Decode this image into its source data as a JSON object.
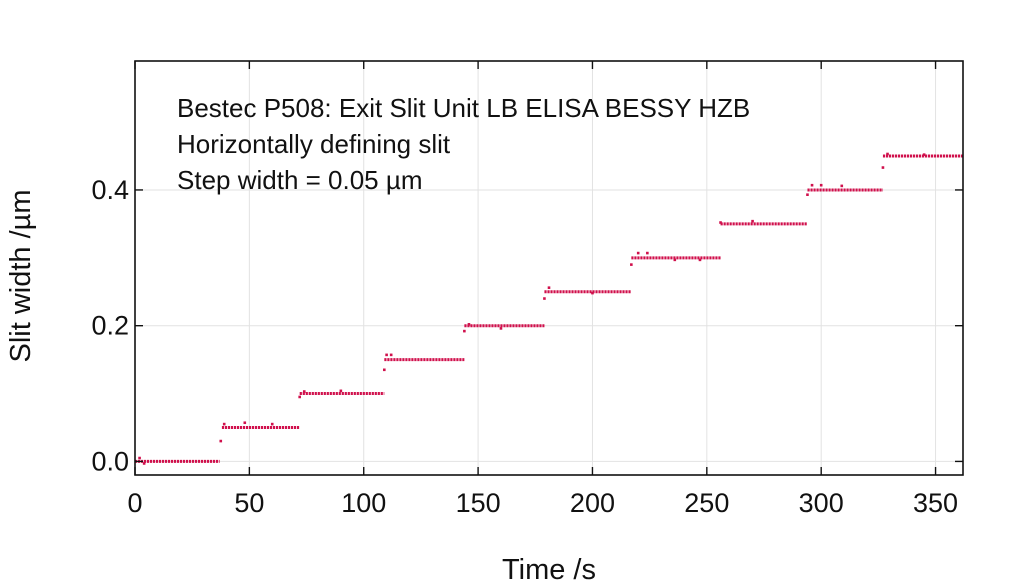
{
  "chart_data": {
    "type": "scatter",
    "xlabel": "Time /s",
    "ylabel": "Slit width /µm",
    "xlim": [
      0,
      362
    ],
    "ylim": [
      -0.02,
      0.59
    ],
    "x_ticks": [
      0,
      50,
      100,
      150,
      200,
      250,
      300,
      350
    ],
    "x_tick_labels": [
      "0",
      "50",
      "100",
      "150",
      "200",
      "250",
      "300",
      "350"
    ],
    "y_ticks": [
      0.0,
      0.2,
      0.4
    ],
    "y_tick_labels": [
      "0.0",
      "0.2",
      "0.4"
    ],
    "grid": true,
    "annotations": [
      "Bestec P508: Exit Slit Unit LB ELISA BESSY HZB",
      "Horizontally defining slit",
      "Step width = 0.05 µm"
    ],
    "series": [
      {
        "color": "#d0104c",
        "steps": [
          {
            "x_start": 0,
            "x_end": 37,
            "y": 0.0
          },
          {
            "x_start": 38,
            "x_end": 72,
            "y": 0.05
          },
          {
            "x_start": 72,
            "x_end": 109,
            "y": 0.1
          },
          {
            "x_start": 109,
            "x_end": 144,
            "y": 0.15
          },
          {
            "x_start": 144,
            "x_end": 179,
            "y": 0.2
          },
          {
            "x_start": 179,
            "x_end": 217,
            "y": 0.25
          },
          {
            "x_start": 217,
            "x_end": 256,
            "y": 0.3
          },
          {
            "x_start": 256,
            "x_end": 294,
            "y": 0.35
          },
          {
            "x_start": 294,
            "x_end": 327,
            "y": 0.4
          },
          {
            "x_start": 327,
            "x_end": 362,
            "y": 0.45
          }
        ],
        "outliers": [
          {
            "x": 2,
            "y": 0.005
          },
          {
            "x": 4,
            "y": -0.003
          },
          {
            "x": 37.5,
            "y": 0.03
          },
          {
            "x": 39,
            "y": 0.055
          },
          {
            "x": 48,
            "y": 0.057
          },
          {
            "x": 60,
            "y": 0.055
          },
          {
            "x": 72,
            "y": 0.095
          },
          {
            "x": 74,
            "y": 0.103
          },
          {
            "x": 90,
            "y": 0.104
          },
          {
            "x": 109,
            "y": 0.135
          },
          {
            "x": 110,
            "y": 0.157
          },
          {
            "x": 112,
            "y": 0.157
          },
          {
            "x": 144,
            "y": 0.192
          },
          {
            "x": 146,
            "y": 0.202
          },
          {
            "x": 160,
            "y": 0.196
          },
          {
            "x": 179,
            "y": 0.24
          },
          {
            "x": 181,
            "y": 0.256
          },
          {
            "x": 200,
            "y": 0.248
          },
          {
            "x": 217,
            "y": 0.29
          },
          {
            "x": 220,
            "y": 0.307
          },
          {
            "x": 224,
            "y": 0.307
          },
          {
            "x": 236,
            "y": 0.297
          },
          {
            "x": 247,
            "y": 0.297
          },
          {
            "x": 256,
            "y": 0.352
          },
          {
            "x": 270,
            "y": 0.354
          },
          {
            "x": 294,
            "y": 0.393
          },
          {
            "x": 296,
            "y": 0.407
          },
          {
            "x": 300,
            "y": 0.407
          },
          {
            "x": 309,
            "y": 0.406
          },
          {
            "x": 327,
            "y": 0.433
          },
          {
            "x": 329,
            "y": 0.453
          },
          {
            "x": 345,
            "y": 0.452
          }
        ]
      }
    ]
  }
}
